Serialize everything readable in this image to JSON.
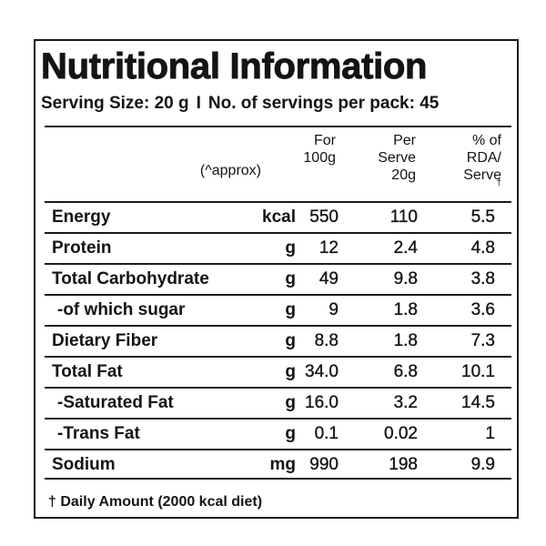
{
  "title": "Nutritional Information",
  "serving": {
    "size_text": "Serving Size: 20 g",
    "separator": "I",
    "servings_text": "No. of servings per pack: 45"
  },
  "header": {
    "approx": "(^approx)",
    "col1": [
      "For",
      "100g"
    ],
    "col2": [
      "Per",
      "Serve",
      "20g"
    ],
    "col3": [
      "% of",
      "RDA/",
      "Serve"
    ],
    "col3_mark": "†"
  },
  "rows": [
    {
      "name": "Energy",
      "unit": "kcal",
      "per100": "550",
      "perServe": "110",
      "rda": "5.5"
    },
    {
      "name": "Protein",
      "unit": "g",
      "per100": "12",
      "perServe": "2.4",
      "rda": "4.8"
    },
    {
      "name": "Total Carbohydrate",
      "unit": "g",
      "per100": "49",
      "perServe": "9.8",
      "rda": "3.8"
    },
    {
      "name": "-of which sugar",
      "unit": "g",
      "per100": "9",
      "perServe": "1.8",
      "rda": "3.6"
    },
    {
      "name": "Dietary Fiber",
      "unit": "g",
      "per100": "8.8",
      "perServe": "1.8",
      "rda": "7.3"
    },
    {
      "name": "Total Fat",
      "unit": "g",
      "per100": "34.0",
      "perServe": "6.8",
      "rda": "10.1"
    },
    {
      "name": "-Saturated Fat",
      "unit": "g",
      "per100": "16.0",
      "perServe": "3.2",
      "rda": "14.5"
    },
    {
      "name": "-Trans Fat",
      "unit": "g",
      "per100": "0.1",
      "perServe": "0.02",
      "rda": "1"
    },
    {
      "name": "Sodium",
      "unit": "mg",
      "per100": "990",
      "perServe": "198",
      "rda": "9.9"
    }
  ],
  "footnote": "† Daily Amount (2000 kcal diet)"
}
